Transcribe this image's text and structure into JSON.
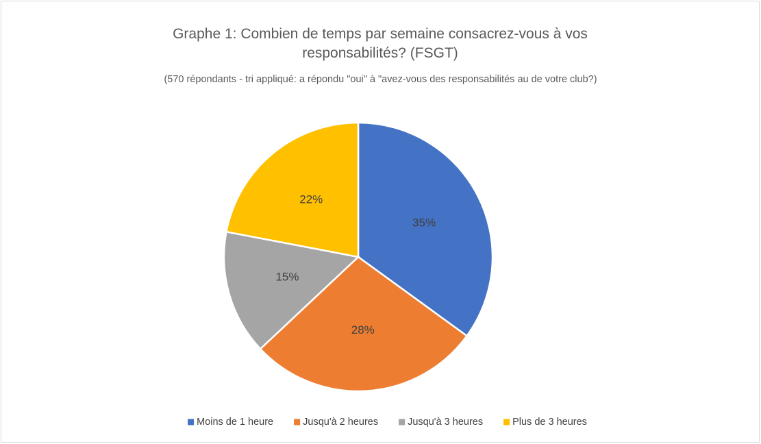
{
  "chart_data": {
    "type": "pie",
    "title": "Graphe 1: Combien de temps par semaine consacrez-vous à vos responsabilités? (FSGT)",
    "subtitle": "(570 répondants - tri appliqué: a répondu \"oui\" à \"avez-vous des responsabilités au de votre club?)",
    "categories": [
      "Moins de 1 heure",
      "Jusqu'à 2 heures",
      "Jusqu'à 3 heures",
      "Plus de 3 heures"
    ],
    "values": [
      35,
      28,
      15,
      22
    ],
    "value_labels": [
      "35%",
      "28%",
      "15%",
      "22%"
    ],
    "colors": [
      "#4472c4",
      "#ed7d31",
      "#a5a5a5",
      "#ffc000"
    ],
    "legend": "bottom"
  }
}
